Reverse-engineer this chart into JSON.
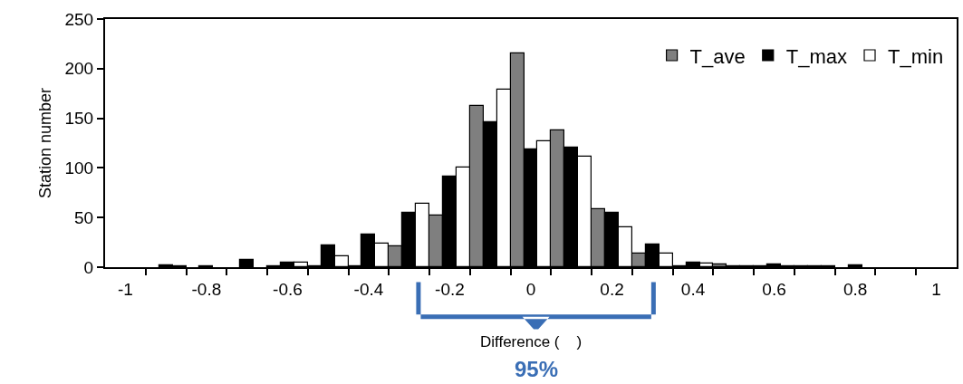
{
  "chart_data": {
    "type": "bar",
    "xlabel": "Difference (    )",
    "ylabel": "Station number",
    "x": [
      -1,
      -0.9,
      -0.8,
      -0.7,
      -0.6,
      -0.5,
      -0.4,
      -0.3,
      -0.2,
      -0.1,
      0,
      0.1,
      0.2,
      0.3,
      0.4,
      0.5,
      0.6,
      0.7,
      0.8,
      0.9,
      1
    ],
    "series": [
      {
        "name": "T_ave",
        "color": "#7f7f7f",
        "values": [
          0,
          0,
          0,
          0,
          1,
          1,
          1,
          21,
          52,
          162,
          215,
          138,
          58,
          14,
          1,
          3,
          1,
          1,
          0,
          0,
          0
        ]
      },
      {
        "name": "T_max",
        "color": "#000000",
        "values": [
          0,
          2,
          1,
          7,
          5,
          22,
          33,
          55,
          91,
          146,
          119,
          120,
          55,
          23,
          5,
          1,
          3,
          1,
          2,
          0,
          0
        ]
      },
      {
        "name": "T_min",
        "color": "#ffffff",
        "values": [
          0,
          1,
          0,
          0,
          5,
          11,
          24,
          64,
          100,
          179,
          127,
          111,
          40,
          14,
          4,
          1,
          1,
          1,
          0,
          0,
          0
        ]
      }
    ],
    "xlim": [
      -1.05,
      1.05
    ],
    "xticks": [
      -1,
      {
        "value": -0.95,
        "label": null
      },
      -0.8,
      {
        "value": -0.85,
        "label": null
      },
      {
        "value": -0.75,
        "label": null
      },
      -0.6,
      {
        "value": -0.65,
        "label": null
      },
      {
        "value": -0.55,
        "label": null
      },
      -0.4,
      {
        "value": -0.45,
        "label": null
      },
      {
        "value": -0.35,
        "label": null
      },
      -0.2,
      {
        "value": -0.25,
        "label": null
      },
      {
        "value": -0.15,
        "label": null
      },
      0,
      {
        "value": -0.05,
        "label": null
      },
      {
        "value": 0.05,
        "label": null
      },
      0.2,
      {
        "value": 0.15,
        "label": null
      },
      {
        "value": 0.25,
        "label": null
      },
      0.4,
      {
        "value": 0.35,
        "label": null
      },
      {
        "value": 0.45,
        "label": null
      },
      0.6,
      {
        "value": 0.55,
        "label": null
      },
      {
        "value": 0.65,
        "label": null
      },
      0.8,
      {
        "value": 0.75,
        "label": null
      },
      {
        "value": 0.85,
        "label": null
      },
      1,
      {
        "value": 0.95,
        "label": null
      }
    ],
    "ylim": [
      0,
      250
    ],
    "yticks": [
      0,
      50,
      100,
      150,
      200,
      250
    ],
    "annotations": [
      "95%"
    ],
    "legend": "top right"
  }
}
